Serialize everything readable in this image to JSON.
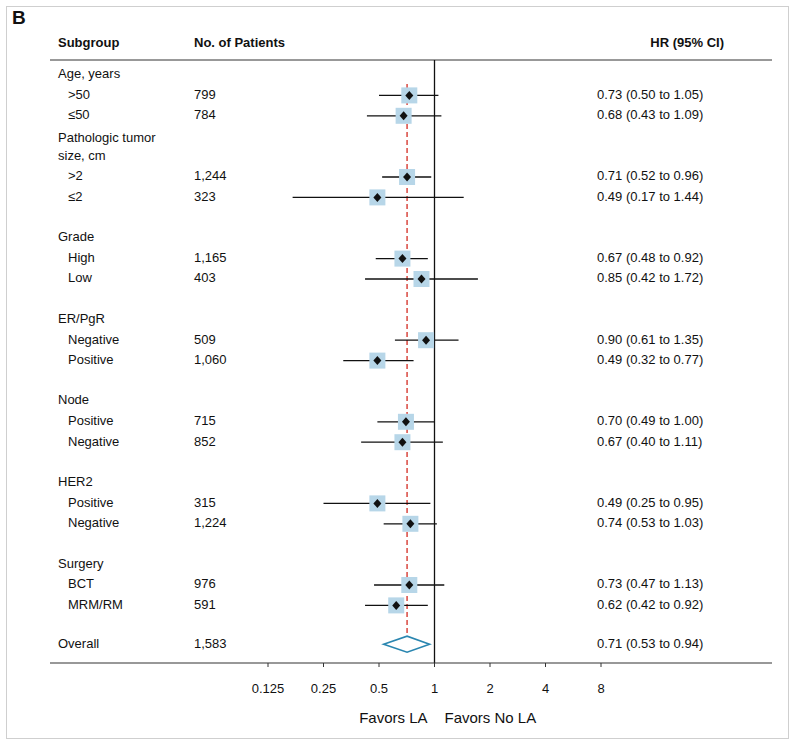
{
  "chart_data": {
    "type": "forest",
    "panel_label": "B",
    "columns": {
      "subgroup": "Subgroup",
      "patients": "No. of Patients",
      "hr": "HR (95% CI)"
    },
    "groups": [
      {
        "label": "Age, years",
        "rows": [
          {
            "label": ">50",
            "n": "799",
            "hr": 0.73,
            "lower": 0.5,
            "upper": 1.05,
            "ci_label": "0.73 (0.50 to 1.05)"
          },
          {
            "label": "≤50",
            "n": "784",
            "hr": 0.68,
            "lower": 0.43,
            "upper": 1.09,
            "ci_label": "0.68 (0.43 to 1.09)"
          }
        ]
      },
      {
        "label": "Pathologic tumor size, cm",
        "rows": [
          {
            "label": ">2",
            "n": "1,244",
            "hr": 0.71,
            "lower": 0.52,
            "upper": 0.96,
            "ci_label": "0.71 (0.52 to 0.96)"
          },
          {
            "label": "≤2",
            "n": "323",
            "hr": 0.49,
            "lower": 0.17,
            "upper": 1.44,
            "ci_label": "0.49 (0.17 to 1.44)"
          }
        ]
      },
      {
        "label": "Grade",
        "rows": [
          {
            "label": "High",
            "n": "1,165",
            "hr": 0.67,
            "lower": 0.48,
            "upper": 0.92,
            "ci_label": "0.67 (0.48 to 0.92)"
          },
          {
            "label": "Low",
            "n": "403",
            "hr": 0.85,
            "lower": 0.42,
            "upper": 1.72,
            "ci_label": "0.85 (0.42 to 1.72)"
          }
        ]
      },
      {
        "label": "ER/PgR",
        "rows": [
          {
            "label": "Negative",
            "n": "509",
            "hr": 0.9,
            "lower": 0.61,
            "upper": 1.35,
            "ci_label": "0.90 (0.61 to 1.35)"
          },
          {
            "label": "Positive",
            "n": "1,060",
            "hr": 0.49,
            "lower": 0.32,
            "upper": 0.77,
            "ci_label": "0.49 (0.32 to 0.77)"
          }
        ]
      },
      {
        "label": "Node",
        "rows": [
          {
            "label": "Positive",
            "n": "715",
            "hr": 0.7,
            "lower": 0.49,
            "upper": 1.0,
            "ci_label": "0.70 (0.49 to 1.00)"
          },
          {
            "label": "Negative",
            "n": "852",
            "hr": 0.67,
            "lower": 0.4,
            "upper": 1.11,
            "ci_label": "0.67 (0.40 to 1.11)"
          }
        ]
      },
      {
        "label": "HER2",
        "rows": [
          {
            "label": "Positive",
            "n": "315",
            "hr": 0.49,
            "lower": 0.25,
            "upper": 0.95,
            "ci_label": "0.49 (0.25 to 0.95)"
          },
          {
            "label": "Negative",
            "n": "1,224",
            "hr": 0.74,
            "lower": 0.53,
            "upper": 1.03,
            "ci_label": "0.74 (0.53 to 1.03)"
          }
        ]
      },
      {
        "label": "Surgery",
        "rows": [
          {
            "label": "BCT",
            "n": "976",
            "hr": 0.73,
            "lower": 0.47,
            "upper": 1.13,
            "ci_label": "0.73 (0.47 to 1.13)"
          },
          {
            "label": "MRM/RM",
            "n": "591",
            "hr": 0.62,
            "lower": 0.42,
            "upper": 0.92,
            "ci_label": "0.62 (0.42 to 0.92)"
          }
        ]
      }
    ],
    "overall": {
      "label": "Overall",
      "n": "1,583",
      "hr": 0.71,
      "lower": 0.53,
      "upper": 0.94,
      "ci_label": "0.71 (0.53 to 0.94)"
    },
    "log": "x",
    "xlim": [
      0.125,
      8
    ],
    "xticks": [
      0.125,
      0.25,
      0.5,
      1,
      2,
      4,
      8
    ],
    "reference": 1,
    "xlabel_left": "Favors LA",
    "xlabel_right": "Favors No LA"
  }
}
